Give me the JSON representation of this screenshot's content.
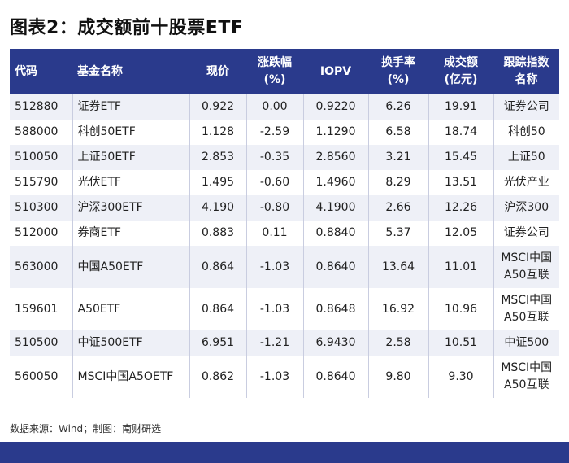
{
  "title": "图表2：成交额前十股票ETF",
  "headers": {
    "code": "代码",
    "name": "基金名称",
    "price": "现价",
    "change_1": "涨跌幅",
    "change_2": "(%)",
    "iopv": "IOPV",
    "turnover_1": "换手率",
    "turnover_2": "(%)",
    "volume_1": "成交额",
    "volume_2": "(亿元)",
    "index_1": "跟踪指数",
    "index_2": "名称"
  },
  "rows": [
    {
      "code": "512880",
      "name": "证券ETF",
      "price": "0.922",
      "change": "0.00",
      "iopv": "0.9220",
      "turnover": "6.26",
      "volume": "19.91",
      "index_1": "证券公司",
      "index_2": ""
    },
    {
      "code": "588000",
      "name": "科创50ETF",
      "price": "1.128",
      "change": "-2.59",
      "iopv": "1.1290",
      "turnover": "6.58",
      "volume": "18.74",
      "index_1": "科创50",
      "index_2": ""
    },
    {
      "code": "510050",
      "name": "上证50ETF",
      "price": "2.853",
      "change": "-0.35",
      "iopv": "2.8560",
      "turnover": "3.21",
      "volume": "15.45",
      "index_1": "上证50",
      "index_2": ""
    },
    {
      "code": "515790",
      "name": "光伏ETF",
      "price": "1.495",
      "change": "-0.60",
      "iopv": "1.4960",
      "turnover": "8.29",
      "volume": "13.51",
      "index_1": "光伏产业",
      "index_2": ""
    },
    {
      "code": "510300",
      "name": "沪深300ETF",
      "price": "4.190",
      "change": "-0.80",
      "iopv": "4.1900",
      "turnover": "2.66",
      "volume": "12.26",
      "index_1": "沪深300",
      "index_2": ""
    },
    {
      "code": "512000",
      "name": "券商ETF",
      "price": "0.883",
      "change": "0.11",
      "iopv": "0.8840",
      "turnover": "5.37",
      "volume": "12.05",
      "index_1": "证券公司",
      "index_2": ""
    },
    {
      "code": "563000",
      "name": "中国A50ETF",
      "price": "0.864",
      "change": "-1.03",
      "iopv": "0.8640",
      "turnover": "13.64",
      "volume": "11.01",
      "index_1": "MSCI中国",
      "index_2": "A50互联"
    },
    {
      "code": "159601",
      "name": "A50ETF",
      "price": "0.864",
      "change": "-1.03",
      "iopv": "0.8648",
      "turnover": "16.92",
      "volume": "10.96",
      "index_1": "MSCI中国",
      "index_2": "A50互联"
    },
    {
      "code": "510500",
      "name": "中证500ETF",
      "price": "6.951",
      "change": "-1.21",
      "iopv": "6.9430",
      "turnover": "2.58",
      "volume": "10.51",
      "index_1": "中证500",
      "index_2": ""
    },
    {
      "code": "560050",
      "name": "MSCI中国A5OETF",
      "price": "0.862",
      "change": "-1.03",
      "iopv": "0.8640",
      "turnover": "9.80",
      "volume": "9.30",
      "index_1": "MSCI中国",
      "index_2": "A50互联"
    }
  ],
  "source": "数据来源：Wind；制图：南财研选"
}
